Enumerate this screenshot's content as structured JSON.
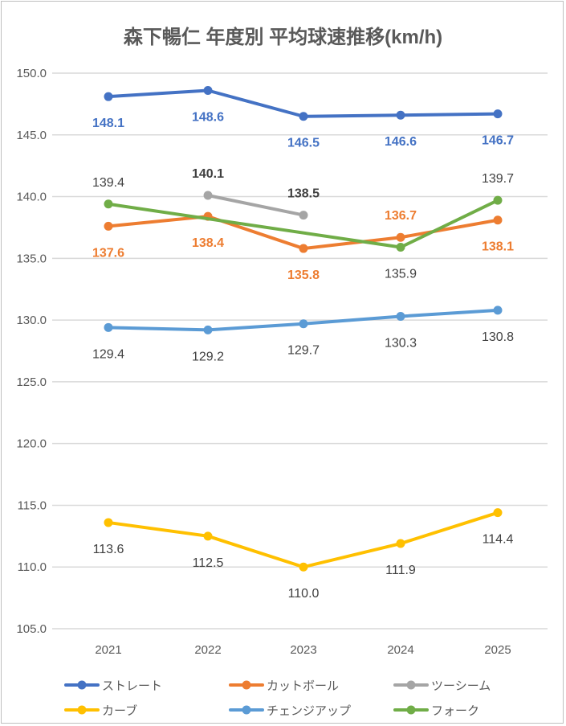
{
  "chart_data": {
    "type": "line",
    "title": "森下暢仁 年度別 平均球速推移(km/h)",
    "xlabel": "",
    "ylabel": "",
    "categories": [
      "2021",
      "2022",
      "2023",
      "2024",
      "2025"
    ],
    "ylim": [
      105,
      150
    ],
    "yticks": [
      "105.0",
      "110.0",
      "115.0",
      "120.0",
      "125.0",
      "130.0",
      "135.0",
      "140.0",
      "145.0",
      "150.0"
    ],
    "grid": true,
    "legend": "bottom",
    "series": [
      {
        "name": "ストレート",
        "color": "#4472c4",
        "labelColor": "#4472c4",
        "values": [
          148.1,
          148.6,
          146.5,
          146.6,
          146.7
        ],
        "labels": [
          "148.1",
          "148.6",
          "146.5",
          "146.6",
          "146.7"
        ]
      },
      {
        "name": "カットボール",
        "color": "#ed7d31",
        "labelColor": "#ed7d31",
        "values": [
          137.6,
          138.4,
          135.8,
          136.7,
          138.1
        ],
        "labels": [
          "137.6",
          "138.4",
          "135.8",
          "136.7",
          "138.1"
        ]
      },
      {
        "name": "ツーシーム",
        "color": "#a5a5a5",
        "labelColor": "#404040",
        "values": [
          null,
          140.1,
          138.5,
          null,
          null
        ],
        "labels": [
          null,
          "140.1",
          "138.5",
          null,
          null
        ]
      },
      {
        "name": "カーブ",
        "color": "#ffc000",
        "labelColor": "#404040",
        "values": [
          113.6,
          112.5,
          110.0,
          111.9,
          114.4
        ],
        "labels": [
          "113.6",
          "112.5",
          "110.0",
          "111.9",
          "114.4"
        ]
      },
      {
        "name": "チェンジアップ",
        "color": "#5b9bd5",
        "labelColor": "#404040",
        "values": [
          129.4,
          129.2,
          129.7,
          130.3,
          130.8
        ],
        "labels": [
          "129.4",
          "129.2",
          "129.7",
          "130.3",
          "130.8"
        ]
      },
      {
        "name": "フォーク",
        "color": "#70ad47",
        "labelColor": "#404040",
        "values": [
          139.4,
          null,
          null,
          135.9,
          139.7
        ],
        "labels": [
          "139.4",
          null,
          null,
          "135.9",
          "139.7"
        ]
      }
    ]
  }
}
